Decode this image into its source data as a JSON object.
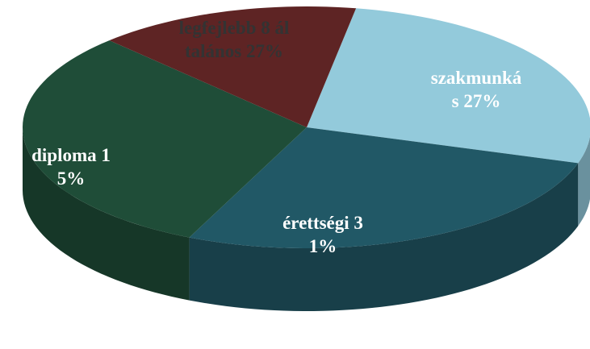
{
  "chart_data": {
    "type": "pie3d",
    "categories": [
      "legfejlebb 8 általános",
      "szakmunkás",
      "érettségi",
      "diploma"
    ],
    "values": [
      27,
      27,
      31,
      15
    ],
    "value_labels": [
      "27%",
      "27%",
      "31%",
      "15%"
    ],
    "colors": [
      "#93cadb",
      "#215866",
      "#1f4d38",
      "#5e2424"
    ]
  }
}
